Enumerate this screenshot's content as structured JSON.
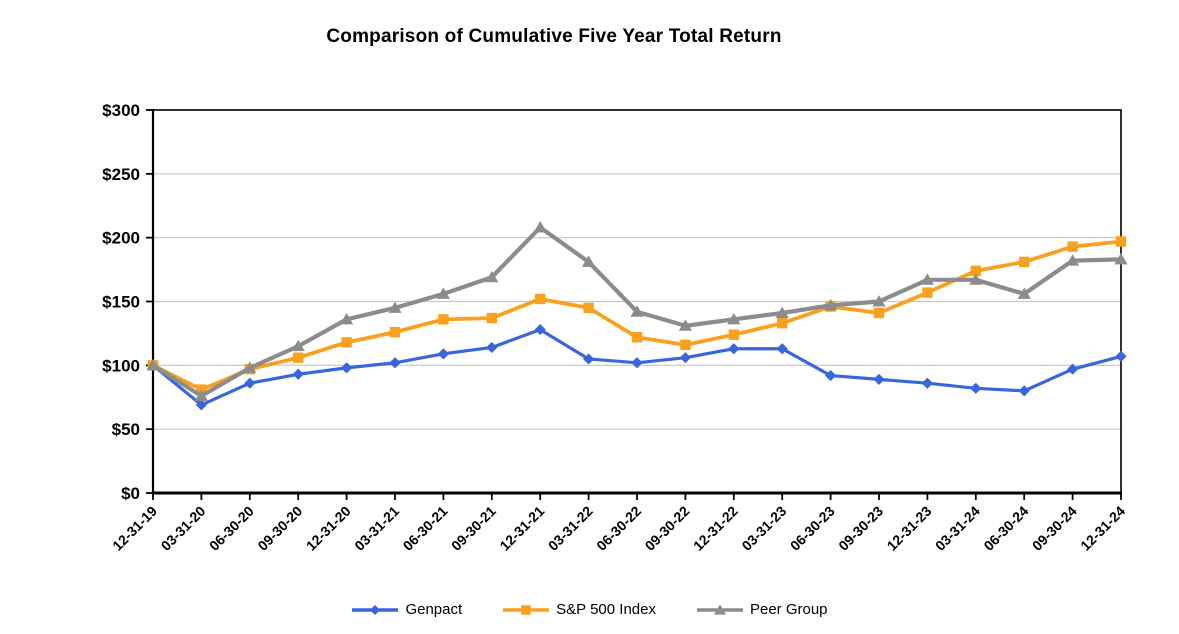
{
  "title": "Comparison of Cumulative Five Year Total Return",
  "chart_data": {
    "type": "line",
    "title": "Comparison of Cumulative Five Year Total Return",
    "x_labels": [
      "12-31-19",
      "03-31-20",
      "06-30-20",
      "09-30-20",
      "12-31-20",
      "03-31-21",
      "06-30-21",
      "09-30-21",
      "12-31-21",
      "03-31-22",
      "06-30-22",
      "09-30-22",
      "12-31-22",
      "03-31-23",
      "06-30-23",
      "09-30-23",
      "12-31-23",
      "03-31-24",
      "06-30-24",
      "09-30-24",
      "12-31-24"
    ],
    "y_axis": {
      "min": 0,
      "max": 300,
      "tick_step": 50,
      "tick_values": [
        0,
        50,
        100,
        150,
        200,
        250,
        300
      ],
      "tick_labels": [
        "$0",
        "$50",
        "$100",
        "$150",
        "$200",
        "$250",
        "$300"
      ]
    },
    "grid": "horizontal-only",
    "legend_position": "bottom",
    "series": [
      {
        "name": "Genpact",
        "color": "#3A66DD",
        "marker": "diamond",
        "values": [
          100,
          69,
          86,
          93,
          98,
          102,
          109,
          114,
          128,
          105,
          102,
          106,
          113,
          113,
          92,
          89,
          86,
          82,
          80,
          97,
          107
        ]
      },
      {
        "name": "S&P 500 Index",
        "color": "#F9A11E",
        "marker": "square",
        "values": [
          100,
          81,
          97,
          106,
          118,
          126,
          136,
          137,
          152,
          145,
          122,
          116,
          124,
          133,
          146,
          141,
          157,
          174,
          181,
          193,
          197
        ]
      },
      {
        "name": "Peer Group",
        "color": "#8C8C8C",
        "marker": "triangle",
        "values": [
          100,
          76,
          98,
          115,
          136,
          145,
          156,
          169,
          208,
          181,
          142,
          131,
          136,
          141,
          147,
          150,
          167,
          167,
          156,
          182,
          183
        ]
      }
    ],
    "colors": {
      "gridline": "#C6C6C6",
      "axis": "#000000",
      "text": "#000000"
    }
  }
}
